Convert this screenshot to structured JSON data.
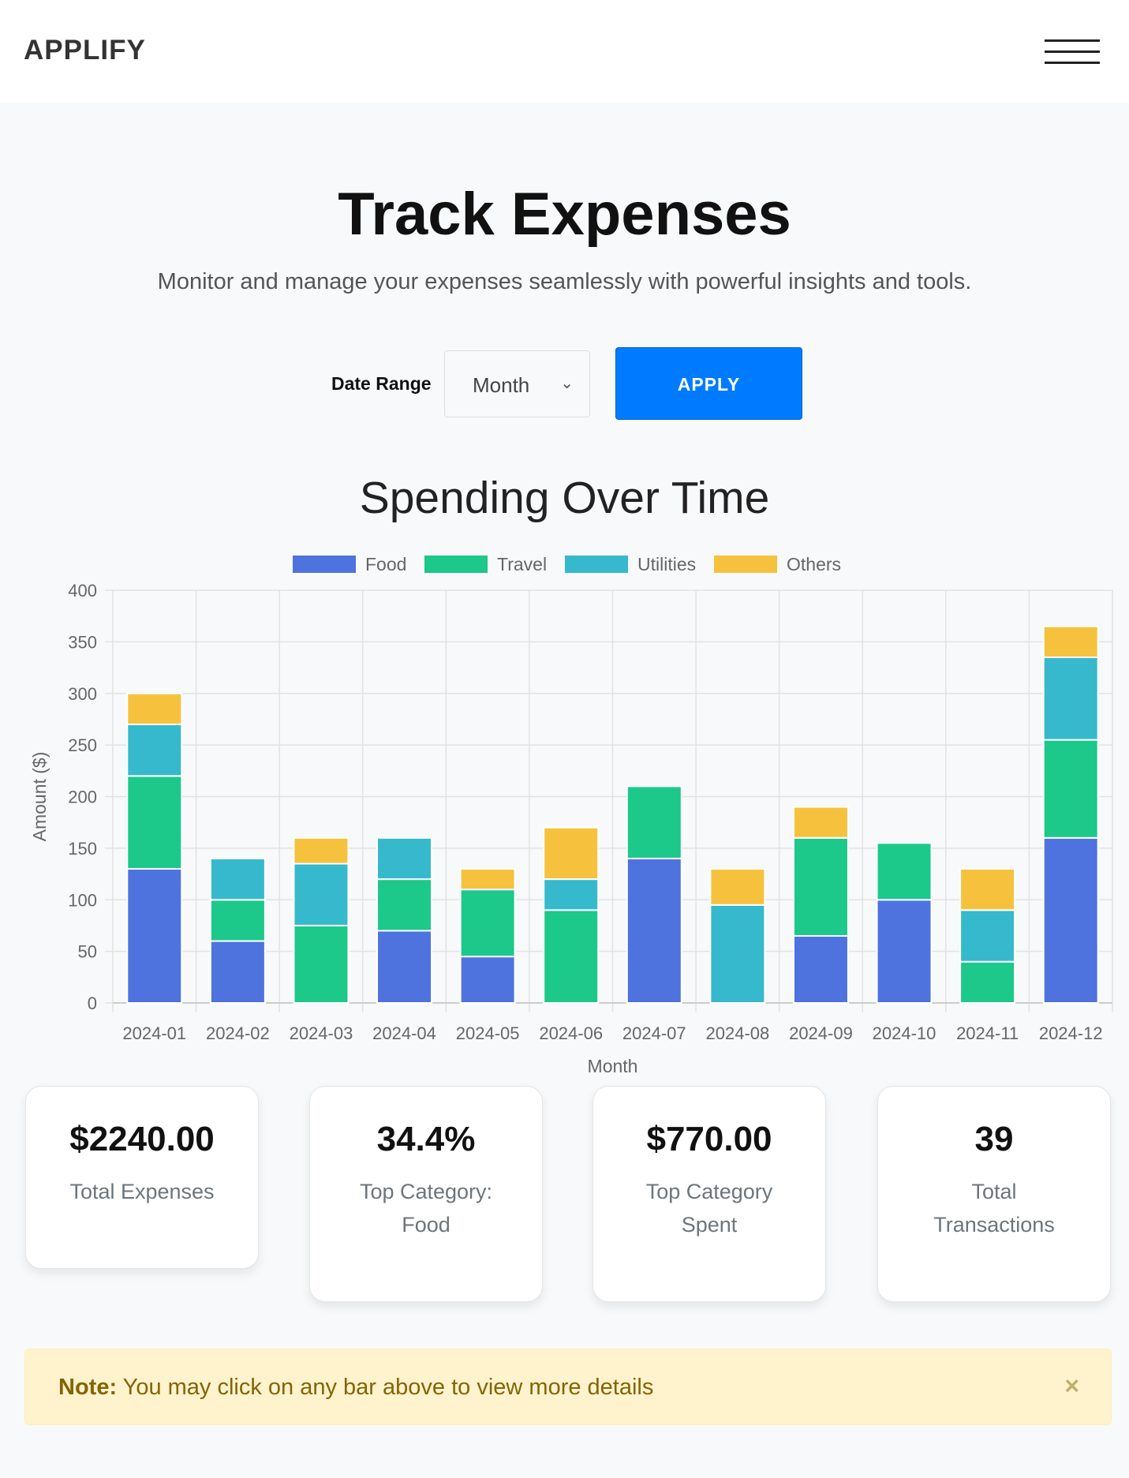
{
  "header": {
    "logo": "APPLIFY"
  },
  "hero": {
    "title": "Track Expenses",
    "subtitle": "Monitor and manage your expenses seamlessly with powerful insights and tools."
  },
  "controls": {
    "date_range_label": "Date Range",
    "date_range_value": "Month",
    "apply_label": "APPLY"
  },
  "chart_title": "Spending Over Time",
  "chart_data": {
    "type": "bar",
    "stacked": true,
    "categories": [
      "2024-01",
      "2024-02",
      "2024-03",
      "2024-04",
      "2024-05",
      "2024-06",
      "2024-07",
      "2024-08",
      "2024-09",
      "2024-10",
      "2024-11",
      "2024-12"
    ],
    "series": [
      {
        "name": "Food",
        "color": "#4e73df",
        "values": [
          130,
          60,
          0,
          70,
          45,
          0,
          140,
          0,
          65,
          100,
          0,
          160
        ]
      },
      {
        "name": "Travel",
        "color": "#1cc88a",
        "values": [
          90,
          40,
          75,
          50,
          65,
          90,
          70,
          0,
          95,
          55,
          40,
          95
        ]
      },
      {
        "name": "Utilities",
        "color": "#36b9cc",
        "values": [
          50,
          40,
          60,
          40,
          0,
          30,
          0,
          95,
          0,
          0,
          50,
          80
        ]
      },
      {
        "name": "Others",
        "color": "#f6c23e",
        "values": [
          30,
          0,
          25,
          0,
          20,
          50,
          0,
          35,
          30,
          0,
          40,
          30
        ]
      }
    ],
    "xlabel": "Month",
    "ylabel": "Amount ($)",
    "ylim": [
      0,
      400
    ],
    "yticks": [
      0,
      50,
      100,
      150,
      200,
      250,
      300,
      350,
      400
    ],
    "grid": true,
    "legend": "top"
  },
  "cards": [
    {
      "value": "$2240.00",
      "label": "Total Expenses"
    },
    {
      "value": "34.4%",
      "label": "Top Category: Food"
    },
    {
      "value": "$770.00",
      "label": "Top Category Spent"
    },
    {
      "value": "39",
      "label": "Total Transactions"
    }
  ],
  "note": {
    "bold": "Note:",
    "text": " You may click on any bar above to view more details",
    "close": "×"
  }
}
